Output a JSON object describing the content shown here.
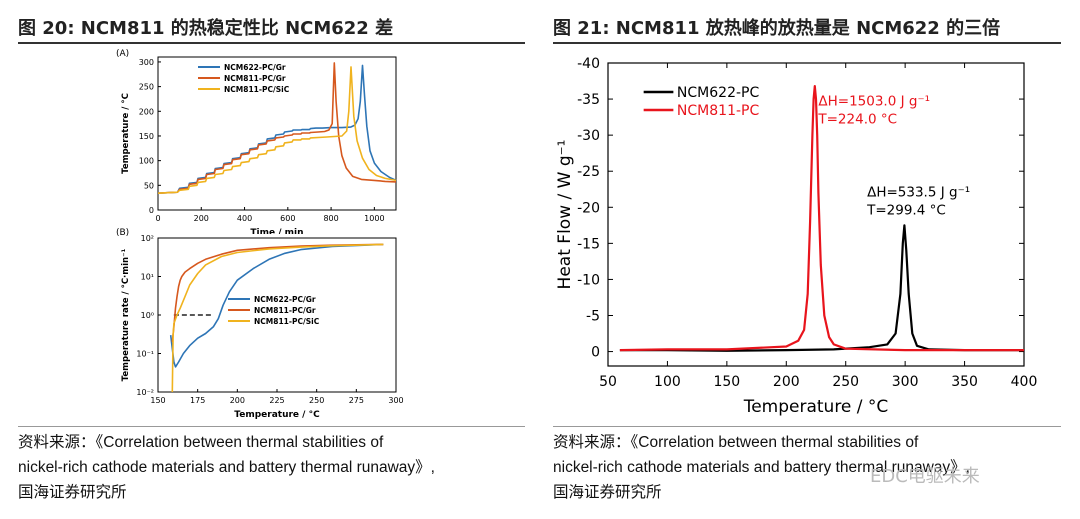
{
  "left": {
    "figure_title": "图 20:  NCM811 的热稳定性比 NCM622 差",
    "source_line1": "资料来源：《Correlation between thermal stabilities of",
    "source_line2": "nickel-rich cathode materials and battery thermal runaway》,",
    "source_line3": "国海证券研究所"
  },
  "right": {
    "figure_title": "图 21:  NCM811 放热峰的放热量是 NCM622 的三倍",
    "source_line1": "资料来源：《Correlation between thermal stabilities of",
    "source_line2": "nickel-rich cathode materials and battery thermal runaway》,",
    "source_line3": "国海证券研究所"
  },
  "watermark": "EDC电驱未来",
  "colors": {
    "blue": "#2e75b6",
    "orange": "#d6581e",
    "gold": "#f0b31e",
    "black": "#000000",
    "red": "#e8141c"
  },
  "chart_data": [
    {
      "id": "A",
      "type": "line",
      "panel_label": "(A)",
      "xlabel": "Time / min",
      "ylabel": "Temperature / °C",
      "xlim": [
        0,
        1100
      ],
      "ylim": [
        0,
        310
      ],
      "xticks": [
        0,
        200,
        400,
        600,
        800,
        1000
      ],
      "yticks": [
        0,
        50,
        100,
        150,
        200,
        250,
        300
      ],
      "series": [
        {
          "name": "NCM622-PC/Gr",
          "color": "blue",
          "x": [
            0,
            90,
            100,
            140,
            145,
            180,
            185,
            220,
            225,
            260,
            265,
            300,
            305,
            340,
            345,
            380,
            385,
            420,
            425,
            460,
            465,
            500,
            505,
            540,
            545,
            580,
            585,
            620,
            625,
            660,
            665,
            700,
            705,
            730,
            760,
            800,
            850,
            890,
            910,
            925,
            935,
            945,
            955,
            965,
            980,
            1000,
            1030,
            1070,
            1100
          ],
          "y": [
            34,
            36,
            44,
            46,
            54,
            56,
            64,
            66,
            74,
            76,
            84,
            86,
            94,
            96,
            104,
            106,
            114,
            116,
            124,
            126,
            134,
            136,
            144,
            146,
            152,
            154,
            158,
            160,
            162,
            162,
            163,
            163,
            165,
            166,
            166,
            167,
            167,
            168,
            172,
            185,
            220,
            293,
            230,
            170,
            120,
            95,
            78,
            66,
            60
          ]
        },
        {
          "name": "NCM811-PC/Gr",
          "color": "orange",
          "x": [
            0,
            90,
            100,
            140,
            145,
            180,
            185,
            220,
            225,
            260,
            265,
            300,
            305,
            340,
            345,
            380,
            385,
            420,
            425,
            460,
            465,
            500,
            505,
            540,
            545,
            580,
            585,
            620,
            625,
            660,
            665,
            700,
            705,
            740,
            770,
            790,
            805,
            815,
            823,
            835,
            850,
            870,
            900,
            940,
            1000,
            1050,
            1100
          ],
          "y": [
            34,
            36,
            42,
            44,
            52,
            54,
            62,
            64,
            72,
            74,
            82,
            84,
            92,
            94,
            102,
            104,
            112,
            114,
            122,
            124,
            132,
            134,
            140,
            142,
            146,
            148,
            150,
            152,
            154,
            154,
            156,
            156,
            157,
            158,
            159,
            162,
            175,
            298,
            220,
            150,
            110,
            85,
            68,
            62,
            60,
            58,
            57
          ]
        },
        {
          "name": "NCM811-PC/SiC",
          "color": "gold",
          "x": [
            0,
            90,
            100,
            140,
            145,
            180,
            185,
            220,
            225,
            260,
            265,
            300,
            305,
            340,
            345,
            380,
            385,
            420,
            425,
            460,
            465,
            500,
            505,
            540,
            545,
            580,
            585,
            620,
            625,
            660,
            665,
            700,
            705,
            780,
            850,
            872,
            882,
            892,
            905,
            920,
            945,
            975,
            1010,
            1050,
            1100
          ],
          "y": [
            34,
            36,
            40,
            42,
            48,
            50,
            56,
            58,
            64,
            66,
            72,
            74,
            80,
            82,
            88,
            90,
            96,
            98,
            104,
            106,
            112,
            114,
            120,
            122,
            128,
            130,
            136,
            138,
            142,
            142,
            144,
            144,
            146,
            148,
            150,
            160,
            200,
            290,
            190,
            140,
            105,
            82,
            70,
            64,
            60
          ]
        }
      ]
    },
    {
      "id": "B",
      "type": "line",
      "panel_label": "(B)",
      "xlabel": "Temperature / °C",
      "ylabel": "Temperature rate / °C·min⁻¹",
      "yscale": "log",
      "xlim": [
        150,
        300
      ],
      "ylim_log10": [
        -2,
        2
      ],
      "xticks": [
        150,
        175,
        200,
        225,
        250,
        275,
        300
      ],
      "yticks_log10": [
        -2,
        -1,
        0,
        1,
        2
      ],
      "ytick_labels": [
        "10⁻²",
        "10⁻¹",
        "10⁰",
        "10¹",
        "10²"
      ],
      "reference_line": {
        "style": "dashed",
        "color": "black",
        "y": 1,
        "x": [
          160,
          185
        ]
      },
      "series": [
        {
          "name": "NCM622-PC/Gr",
          "color": "blue",
          "x": [
            158,
            160,
            161,
            163,
            166,
            170,
            175,
            180,
            185,
            188,
            191,
            195,
            200,
            210,
            220,
            230,
            240,
            260,
            280,
            292
          ],
          "y": [
            0.3,
            0.06,
            0.045,
            0.06,
            0.1,
            0.16,
            0.25,
            0.33,
            0.5,
            0.8,
            1.8,
            4,
            8,
            16,
            28,
            40,
            50,
            60,
            65,
            68
          ]
        },
        {
          "name": "NCM811-PC/Gr",
          "color": "orange",
          "x": [
            159,
            160,
            161,
            162,
            163,
            164,
            165,
            167,
            170,
            175,
            180,
            190,
            200,
            220,
            240,
            260,
            280,
            292
          ],
          "y": [
            0.2,
            0.5,
            1.5,
            3,
            5.5,
            8,
            10,
            13,
            16,
            22,
            28,
            38,
            48,
            56,
            62,
            65,
            67,
            68
          ]
        },
        {
          "name": "NCM811-PC/SiC",
          "color": "gold",
          "x": [
            159,
            159.5,
            160,
            162,
            164,
            167,
            170,
            175,
            180,
            190,
            200,
            220,
            240,
            260,
            280,
            292
          ],
          "y": [
            0.01,
            0.3,
            0.6,
            1.0,
            1.5,
            3,
            6,
            12,
            20,
            33,
            42,
            52,
            58,
            63,
            66,
            68
          ]
        }
      ]
    },
    {
      "id": "C",
      "type": "line",
      "xlabel": "Temperature / °C",
      "ylabel": "Heat Flow / W g⁻¹",
      "xlim": [
        50,
        400
      ],
      "ylim": [
        -40,
        2
      ],
      "y_inverted": true,
      "xticks": [
        50,
        100,
        150,
        200,
        250,
        300,
        350,
        400
      ],
      "yticks": [
        -40,
        -35,
        -30,
        -25,
        -20,
        -15,
        -10,
        -5,
        0
      ],
      "annotations": [
        {
          "text": "ΔH=1503.0 J g⁻¹",
          "color": "red",
          "x": 227,
          "y": -34.8
        },
        {
          "text": "T=224.0 °C",
          "color": "red",
          "x": 227,
          "y": -32.3
        },
        {
          "text": "ΔH=533.5 J g⁻¹",
          "color": "black",
          "x": 268,
          "y": -22.2
        },
        {
          "text": "T=299.4 °C",
          "color": "black",
          "x": 268,
          "y": -19.7
        }
      ],
      "series": [
        {
          "name": "NCM622-PC",
          "color": "black",
          "x": [
            60,
            100,
            150,
            200,
            240,
            270,
            285,
            292,
            296,
            298,
            299.4,
            301,
            303,
            306,
            310,
            320,
            350,
            400
          ],
          "y": [
            -0.2,
            -0.2,
            -0.1,
            -0.2,
            -0.3,
            -0.6,
            -1.0,
            -2.5,
            -8,
            -15,
            -17.5,
            -14,
            -8,
            -2.5,
            -0.8,
            -0.3,
            -0.2,
            -0.2
          ]
        },
        {
          "name": "NCM811-PC",
          "color": "red",
          "x": [
            60,
            100,
            150,
            200,
            210,
            215,
            218,
            220,
            222,
            223,
            224,
            225,
            226,
            227,
            229,
            232,
            236,
            240,
            250,
            300,
            350,
            400
          ],
          "y": [
            -0.2,
            -0.3,
            -0.3,
            -0.7,
            -1.5,
            -3,
            -8,
            -18,
            -30,
            -35,
            -36.8,
            -35,
            -30,
            -22,
            -12,
            -5,
            -2,
            -1,
            -0.4,
            -0.2,
            -0.2,
            -0.2
          ]
        }
      ]
    }
  ]
}
